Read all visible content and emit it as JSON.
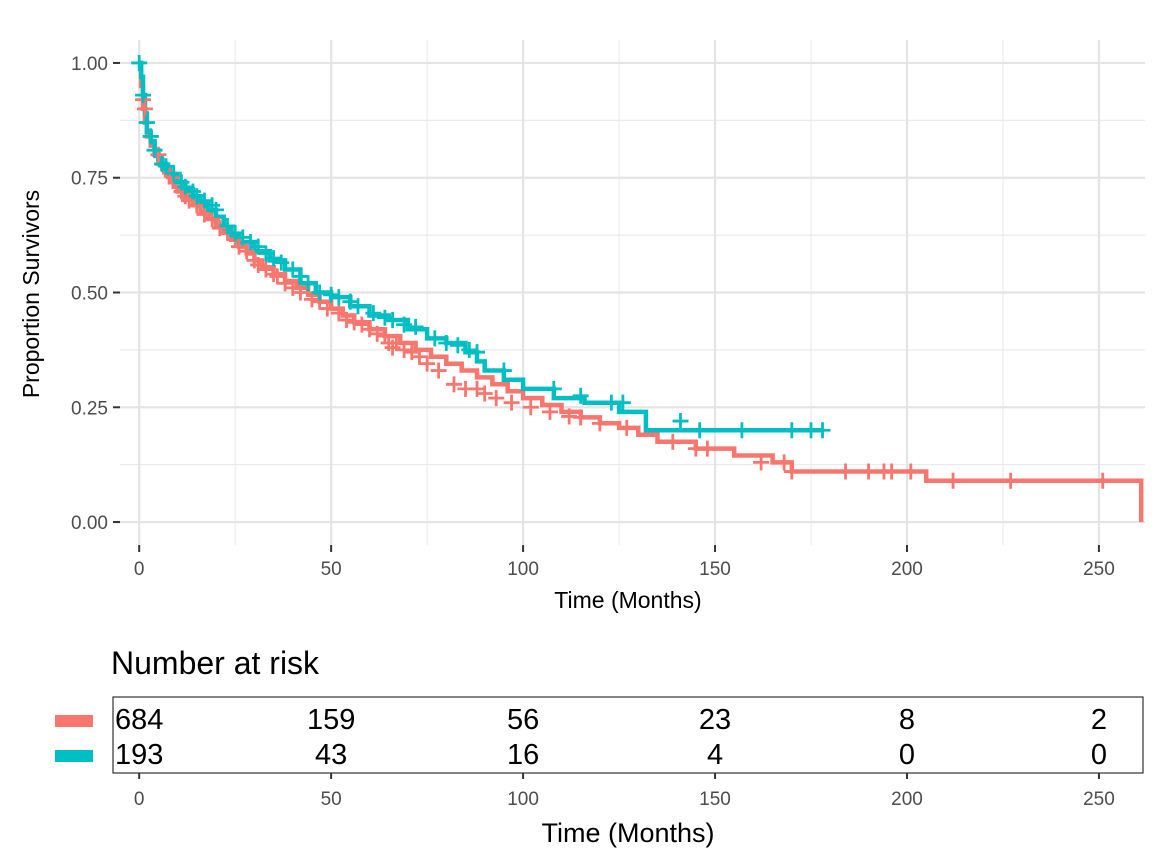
{
  "chart_data": {
    "type": "line",
    "subtype": "kaplan-meier",
    "title": "",
    "xlabel": "Time (Months)",
    "ylabel": "Proportion Survivors",
    "xlim": [
      -5,
      262
    ],
    "ylim": [
      -0.05,
      1.05
    ],
    "x_ticks": [
      0,
      50,
      100,
      150,
      200,
      250
    ],
    "y_ticks": [
      0.0,
      0.25,
      0.5,
      0.75,
      1.0
    ],
    "x_tick_labels": [
      "0",
      "50",
      "100",
      "150",
      "200",
      "250"
    ],
    "y_tick_labels": [
      "0.00",
      "0.25",
      "0.50",
      "0.75",
      "1.00"
    ],
    "grid": true,
    "legend": "none",
    "series": [
      {
        "color": "#F8766D",
        "steps": [
          [
            0,
            1.0
          ],
          [
            0.5,
            0.95
          ],
          [
            1,
            0.9
          ],
          [
            1.5,
            0.87
          ],
          [
            2,
            0.84
          ],
          [
            3,
            0.82
          ],
          [
            4,
            0.8
          ],
          [
            5,
            0.78
          ],
          [
            6,
            0.77
          ],
          [
            7,
            0.755
          ],
          [
            8,
            0.74
          ],
          [
            9,
            0.73
          ],
          [
            10,
            0.72
          ],
          [
            12,
            0.705
          ],
          [
            14,
            0.69
          ],
          [
            16,
            0.675
          ],
          [
            18,
            0.66
          ],
          [
            20,
            0.645
          ],
          [
            22,
            0.63
          ],
          [
            24,
            0.615
          ],
          [
            26,
            0.6
          ],
          [
            28,
            0.585
          ],
          [
            30,
            0.57
          ],
          [
            32,
            0.555
          ],
          [
            35,
            0.54
          ],
          [
            38,
            0.525
          ],
          [
            41,
            0.51
          ],
          [
            44,
            0.495
          ],
          [
            47,
            0.48
          ],
          [
            50,
            0.465
          ],
          [
            53,
            0.45
          ],
          [
            56,
            0.435
          ],
          [
            60,
            0.42
          ],
          [
            64,
            0.405
          ],
          [
            68,
            0.39
          ],
          [
            72,
            0.375
          ],
          [
            76,
            0.36
          ],
          [
            80,
            0.345
          ],
          [
            84,
            0.33
          ],
          [
            88,
            0.315
          ],
          [
            92,
            0.3
          ],
          [
            96,
            0.285
          ],
          [
            100,
            0.27
          ],
          [
            105,
            0.255
          ],
          [
            110,
            0.24
          ],
          [
            115,
            0.228
          ],
          [
            120,
            0.215
          ],
          [
            125,
            0.205
          ],
          [
            130,
            0.19
          ],
          [
            135,
            0.175
          ],
          [
            145,
            0.16
          ],
          [
            155,
            0.145
          ],
          [
            165,
            0.13
          ],
          [
            170,
            0.11
          ],
          [
            205,
            0.09
          ],
          [
            260,
            0.09
          ],
          [
            261,
            0.0
          ]
        ],
        "censor_times": [
          1,
          1.5,
          2,
          3,
          5,
          6,
          8,
          9,
          11,
          12,
          13,
          15,
          17,
          19,
          21,
          23,
          25,
          26,
          28,
          30,
          31,
          33,
          35,
          36,
          38,
          40,
          42,
          45,
          47,
          49,
          52,
          54,
          56,
          58,
          60,
          62,
          64,
          65,
          66,
          67,
          69,
          71,
          73,
          75,
          78,
          82,
          85,
          88,
          90,
          93,
          97,
          102,
          107,
          112,
          115,
          120,
          127,
          139,
          145,
          148,
          162,
          168,
          170,
          184,
          190,
          194,
          196,
          201,
          212,
          227,
          251
        ],
        "censor_y": [
          0.92,
          0.9,
          0.87,
          0.84,
          0.8,
          0.78,
          0.76,
          0.75,
          0.72,
          0.71,
          0.7,
          0.69,
          0.67,
          0.66,
          0.64,
          0.63,
          0.615,
          0.6,
          0.59,
          0.57,
          0.56,
          0.55,
          0.54,
          0.535,
          0.52,
          0.51,
          0.5,
          0.485,
          0.48,
          0.465,
          0.455,
          0.44,
          0.435,
          0.43,
          0.42,
          0.41,
          0.405,
          0.39,
          0.38,
          0.39,
          0.375,
          0.37,
          0.36,
          0.345,
          0.33,
          0.3,
          0.29,
          0.29,
          0.28,
          0.27,
          0.26,
          0.25,
          0.24,
          0.23,
          0.228,
          0.215,
          0.205,
          0.175,
          0.16,
          0.16,
          0.13,
          0.13,
          0.11,
          0.11,
          0.11,
          0.11,
          0.11,
          0.11,
          0.09,
          0.09,
          0.09
        ]
      },
      {
        "color": "#00BFC4",
        "steps": [
          [
            0,
            1.0
          ],
          [
            0.5,
            0.97
          ],
          [
            1,
            0.93
          ],
          [
            1.5,
            0.89
          ],
          [
            2,
            0.85
          ],
          [
            3,
            0.83
          ],
          [
            4,
            0.81
          ],
          [
            5,
            0.79
          ],
          [
            6,
            0.78
          ],
          [
            7,
            0.77
          ],
          [
            8,
            0.755
          ],
          [
            10,
            0.74
          ],
          [
            12,
            0.725
          ],
          [
            14,
            0.71
          ],
          [
            16,
            0.695
          ],
          [
            18,
            0.68
          ],
          [
            20,
            0.665
          ],
          [
            22,
            0.64
          ],
          [
            24,
            0.625
          ],
          [
            26,
            0.61
          ],
          [
            30,
            0.59
          ],
          [
            34,
            0.57
          ],
          [
            38,
            0.55
          ],
          [
            42,
            0.52
          ],
          [
            46,
            0.5
          ],
          [
            50,
            0.49
          ],
          [
            55,
            0.47
          ],
          [
            60,
            0.45
          ],
          [
            65,
            0.44
          ],
          [
            70,
            0.42
          ],
          [
            75,
            0.4
          ],
          [
            80,
            0.39
          ],
          [
            85,
            0.37
          ],
          [
            88,
            0.35
          ],
          [
            90,
            0.33
          ],
          [
            95,
            0.31
          ],
          [
            100,
            0.29
          ],
          [
            108,
            0.27
          ],
          [
            116,
            0.26
          ],
          [
            125,
            0.24
          ],
          [
            132,
            0.2
          ],
          [
            178,
            0.2
          ]
        ],
        "censor_times": [
          0,
          1,
          2,
          3,
          4,
          6,
          7,
          9,
          11,
          12,
          14,
          15,
          17,
          19,
          20,
          23,
          25,
          27,
          29,
          31,
          33,
          35,
          37,
          40,
          42,
          44,
          47,
          50,
          52,
          55,
          57,
          61,
          64,
          66,
          69,
          72,
          77,
          80,
          83,
          86,
          88,
          95,
          108,
          115,
          123,
          126,
          141,
          146,
          157,
          170,
          175,
          178
        ],
        "censor_y": [
          1.0,
          0.93,
          0.87,
          0.84,
          0.81,
          0.78,
          0.775,
          0.76,
          0.74,
          0.73,
          0.72,
          0.71,
          0.7,
          0.69,
          0.68,
          0.645,
          0.63,
          0.62,
          0.61,
          0.6,
          0.585,
          0.575,
          0.565,
          0.55,
          0.535,
          0.52,
          0.5,
          0.495,
          0.49,
          0.48,
          0.47,
          0.455,
          0.445,
          0.44,
          0.43,
          0.425,
          0.4,
          0.39,
          0.385,
          0.375,
          0.37,
          0.33,
          0.29,
          0.275,
          0.26,
          0.26,
          0.22,
          0.2,
          0.2,
          0.2,
          0.2,
          0.2
        ]
      }
    ]
  },
  "risk_table": {
    "title": "Number at risk",
    "xlabel": "Time (Months)",
    "x_tick_labels": [
      "0",
      "50",
      "100",
      "150",
      "200",
      "250"
    ],
    "times": [
      0,
      50,
      100,
      150,
      200,
      250
    ],
    "rows": [
      {
        "color": "#F8766D",
        "counts": [
          "684",
          "159",
          "56",
          "23",
          "8",
          "2"
        ]
      },
      {
        "color": "#00BFC4",
        "counts": [
          "193",
          "43",
          "16",
          "4",
          "0",
          "0"
        ]
      }
    ]
  }
}
